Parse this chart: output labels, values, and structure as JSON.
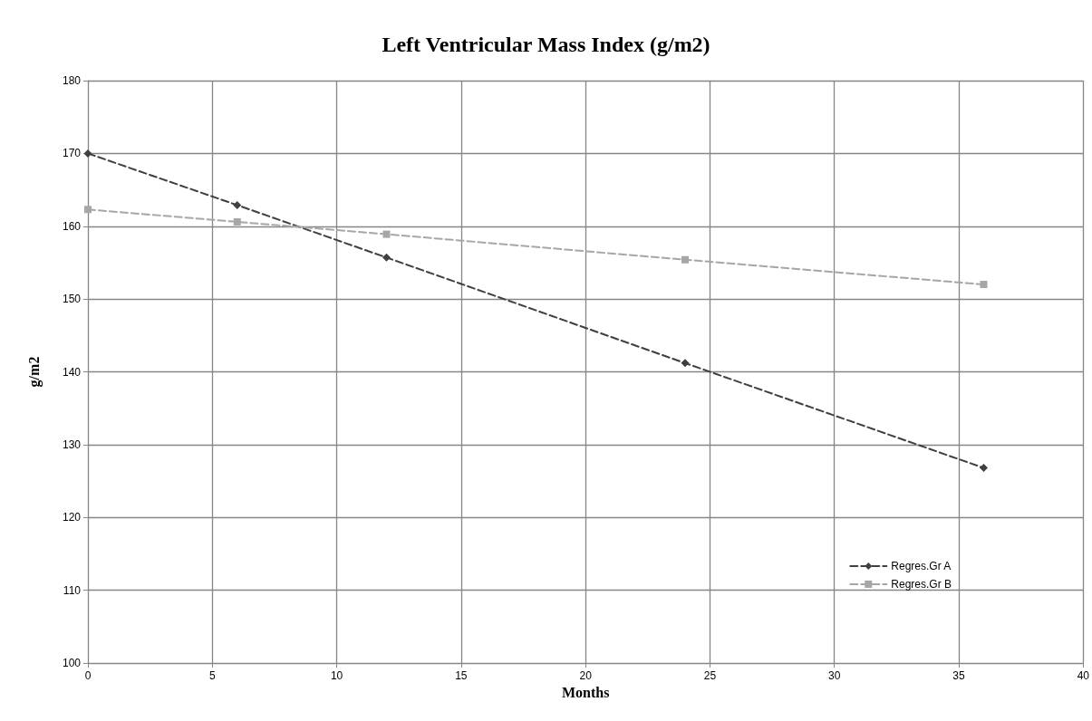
{
  "chart_data": {
    "type": "line",
    "title": "Left Ventricular Mass Index (g/m2)",
    "xlabel": "Months",
    "ylabel": "g/m2",
    "x": [
      0,
      6,
      12,
      24,
      36
    ],
    "series": [
      {
        "name": "Regres.Gr A",
        "color": "#404040",
        "marker": "diamond",
        "line_style": "dashed",
        "values": [
          170,
          162.9,
          155.7,
          141.2,
          126.8
        ]
      },
      {
        "name": "Regres.Gr B",
        "color": "#a6a6a6",
        "marker": "square",
        "line_style": "dashed",
        "values": [
          162.3,
          160.6,
          158.9,
          155.4,
          152.0
        ]
      }
    ],
    "xlim": [
      0,
      40
    ],
    "xticks": [
      0,
      5,
      10,
      15,
      20,
      25,
      30,
      35,
      40
    ],
    "ylim": [
      100,
      180
    ],
    "yticks": [
      100,
      110,
      120,
      130,
      140,
      150,
      160,
      170,
      180
    ],
    "grid": true,
    "legend": "bottom right"
  }
}
